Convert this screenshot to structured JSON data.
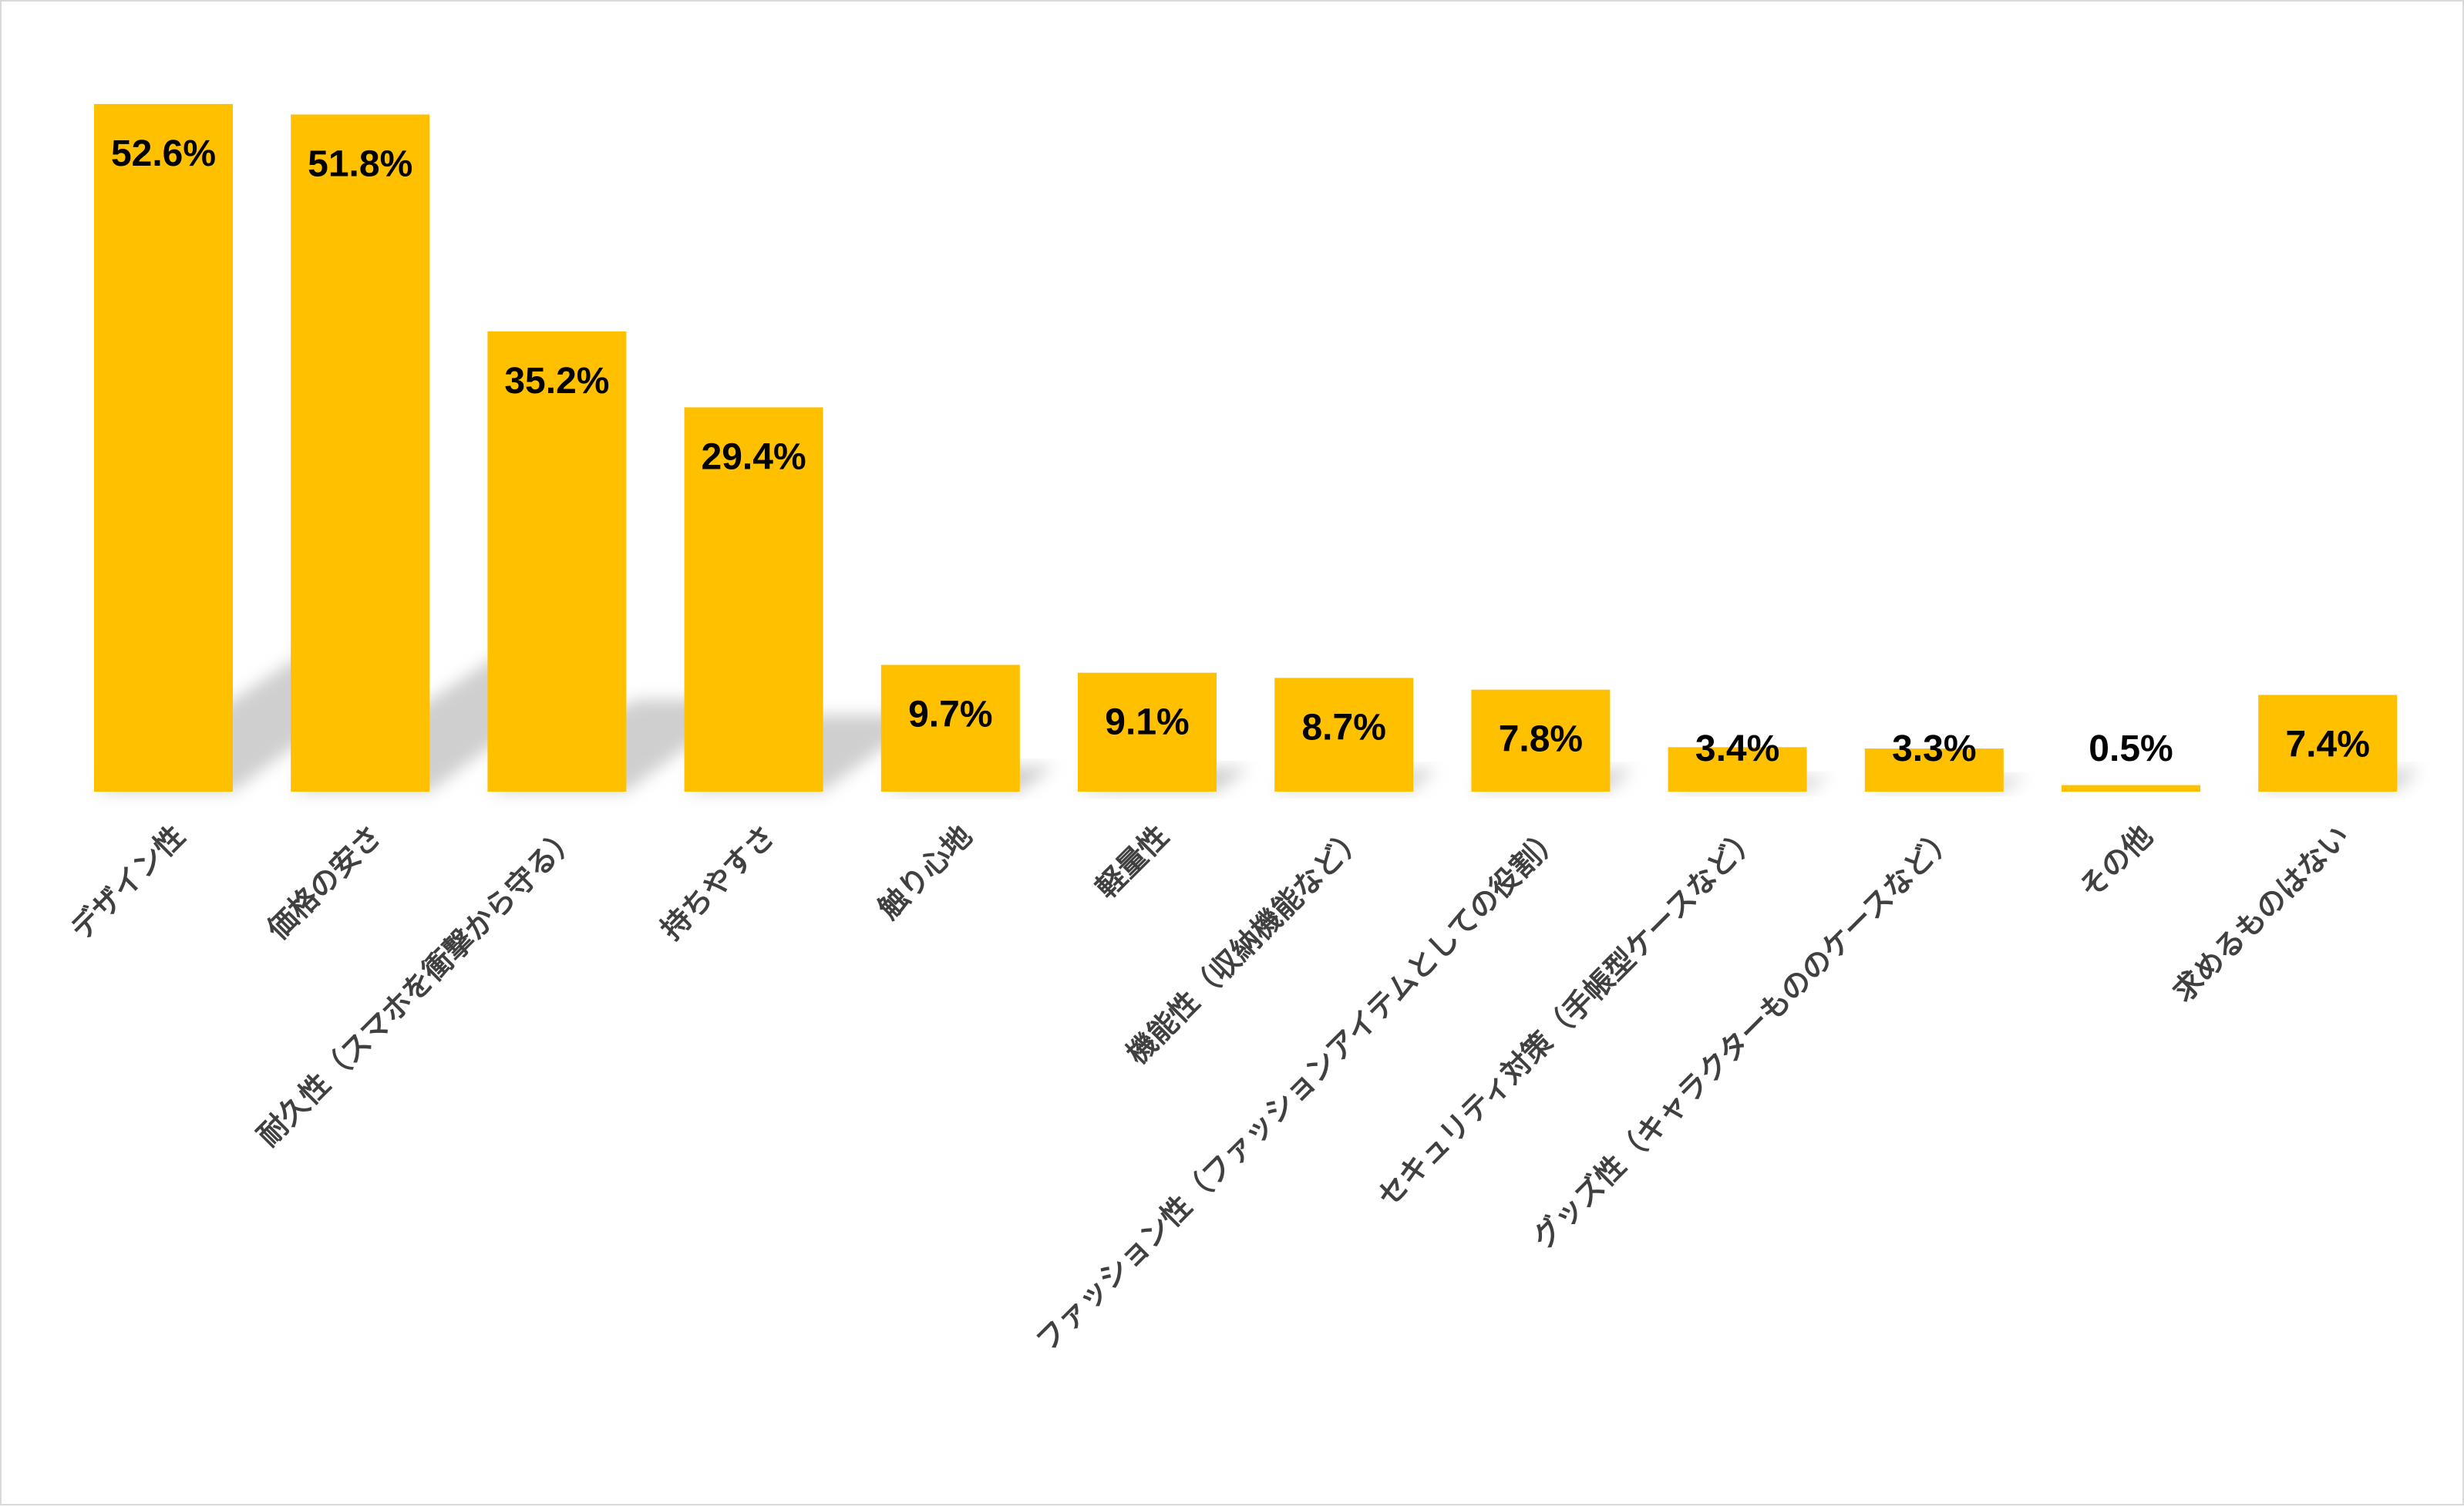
{
  "chart_data": {
    "type": "bar",
    "categories": [
      "デザイン性",
      "価格の安さ",
      "耐久性（スマホを衝撃から守る）",
      "持ちやすさ",
      "触り心地",
      "軽量性",
      "機能性（収納機能など）",
      "ファッション性（ファッションアイテムとしての役割）",
      "セキュリティ対策（手帳型ケースなど）",
      "グッズ性（キャラクターもののケースなど）",
      "その他",
      "求めるものはない"
    ],
    "values": [
      52.6,
      51.8,
      35.2,
      29.4,
      9.7,
      9.1,
      8.7,
      7.8,
      3.4,
      3.3,
      0.5,
      7.4
    ],
    "labels": [
      "52.6%",
      "51.8%",
      "35.2%",
      "29.4%",
      "9.7%",
      "9.1%",
      "8.7%",
      "7.8%",
      "3.4%",
      "3.3%",
      "0.5%",
      "7.4%"
    ],
    "title": "",
    "xlabel": "",
    "ylabel": "",
    "ylim": [
      0,
      60
    ],
    "grid": false,
    "legend": "none",
    "bar_color": "#FFC000",
    "shadow_color": "#bfbfbf"
  }
}
